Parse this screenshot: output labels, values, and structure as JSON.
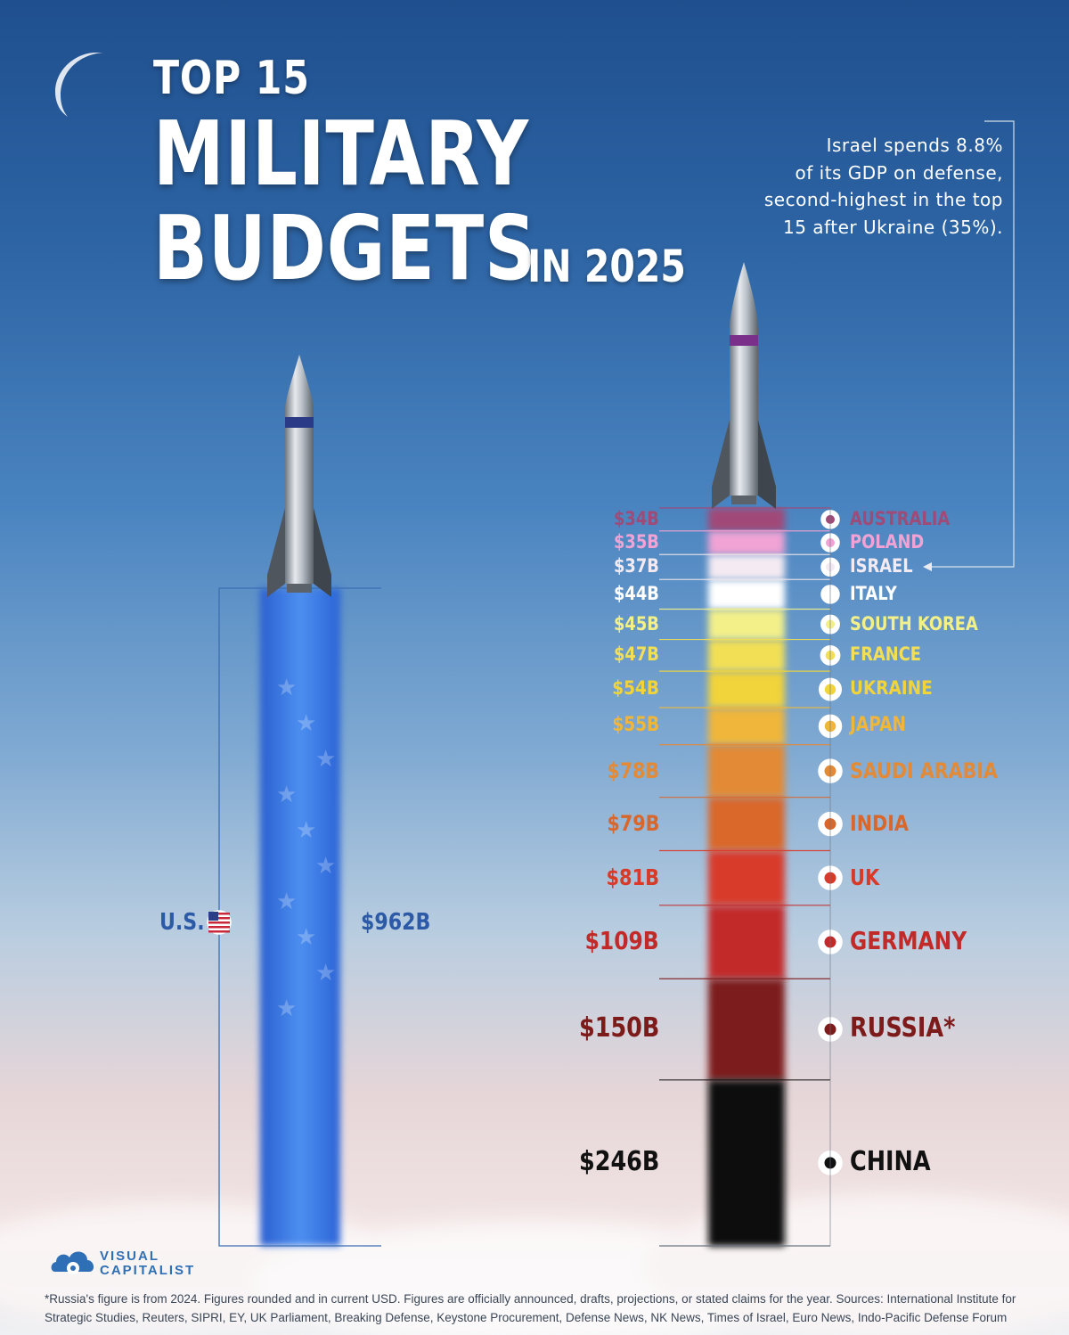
{
  "title": {
    "line1": "TOP 15",
    "line2": "MILITARY",
    "line3": "BUDGETS",
    "line4": "IN 2025"
  },
  "annotation": {
    "line1": "Israel spends 8.8%",
    "line2": "of its GDP on defense,",
    "line3": "second-highest in the top",
    "line4": "15 after Ukraine (35%)."
  },
  "brand": {
    "line1": "VISUAL",
    "line2": "CAPITALIST"
  },
  "footnote": {
    "line1": "*Russia's figure is from 2024. Figures rounded and in current USD. Figures are officially announced, drafts, projections, or stated claims for the year. Sources: International Institute for",
    "line2": "Strategic Studies, Reuters, SIPRI, EY, UK Parliament, Breaking Defense, Keystone Procurement, Defense News, NK News, Times of Israel, Euro News, Indo-Pacific Defense Forum"
  },
  "colors": {
    "us_blue": "#2f6fd6",
    "label_blue": "#2d5aa6"
  },
  "chart_data": {
    "type": "bar",
    "us": {
      "country": "U.S.",
      "value": 962,
      "label": "$962B",
      "color": "#2f6fd6"
    },
    "stack": [
      {
        "country": "AUSTRALIA",
        "value": 34,
        "label": "$34B",
        "color": "#a04a78",
        "flag": "australia-flag-icon"
      },
      {
        "country": "POLAND",
        "value": 35,
        "label": "$35B",
        "color": "#f0a3d4",
        "flag": "poland-flag-icon"
      },
      {
        "country": "ISRAEL",
        "value": 37,
        "label": "$37B",
        "color": "#f4eaf2",
        "flag": "israel-flag-icon"
      },
      {
        "country": "ITALY",
        "value": 44,
        "label": "$44B",
        "color": "#ffffff",
        "flag": "italy-flag-icon"
      },
      {
        "country": "SOUTH KOREA",
        "value": 45,
        "label": "$45B",
        "color": "#f3f08a",
        "flag": "south-korea-flag-icon"
      },
      {
        "country": "FRANCE",
        "value": 47,
        "label": "$47B",
        "color": "#f2df57",
        "flag": "france-flag-icon"
      },
      {
        "country": "UKRAINE",
        "value": 54,
        "label": "$54B",
        "color": "#f1d33a",
        "flag": "ukraine-flag-icon"
      },
      {
        "country": "JAPAN",
        "value": 55,
        "label": "$55B",
        "color": "#efb63a",
        "flag": "japan-flag-icon"
      },
      {
        "country": "SAUDI ARABIA",
        "value": 78,
        "label": "$78B",
        "color": "#e28a35",
        "flag": "saudi-arabia-flag-icon"
      },
      {
        "country": "INDIA",
        "value": 79,
        "label": "$79B",
        "color": "#d9672b",
        "flag": "india-flag-icon"
      },
      {
        "country": "UK",
        "value": 81,
        "label": "$81B",
        "color": "#d83a2a",
        "flag": "uk-flag-icon"
      },
      {
        "country": "GERMANY",
        "value": 109,
        "label": "$109B",
        "color": "#c22a2a",
        "flag": "germany-flag-icon"
      },
      {
        "country": "RUSSIA",
        "value": 150,
        "label": "$150B",
        "color": "#7d1a1a",
        "flag": "russia-flag-icon",
        "asterisk": "*"
      },
      {
        "country": "CHINA",
        "value": 246,
        "label": "$246B",
        "color": "#111111",
        "flag": "china-flag-icon"
      }
    ]
  }
}
